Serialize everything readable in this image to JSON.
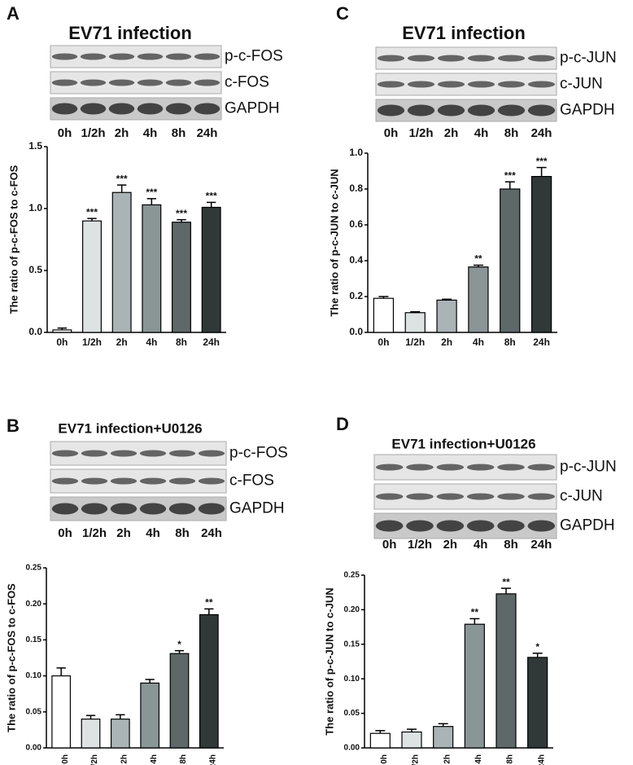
{
  "chart_data": [
    {
      "type": "bar",
      "panel": "A",
      "title": "EV71 infection",
      "blots": [
        "p-c-FOS",
        "c-FOS",
        "GAPDH"
      ],
      "ylabel": "The ratio of p-c-FOS to c-FOS",
      "categories": [
        "0h",
        "1/2h",
        "2h",
        "4h",
        "8h",
        "24h"
      ],
      "values": [
        0.02,
        0.9,
        1.13,
        1.03,
        0.89,
        1.01
      ],
      "errors": [
        0.015,
        0.02,
        0.06,
        0.05,
        0.02,
        0.04
      ],
      "annotations": [
        null,
        "***",
        "***",
        "***",
        "***",
        "***"
      ],
      "colors": [
        "#ffffff",
        "#dde3e3",
        "#aab3b5",
        "#8a9596",
        "#5e6868",
        "#303838"
      ],
      "ylim": [
        0,
        1.5
      ],
      "yticks": [
        {
          "value": 0,
          "label": "0.0"
        },
        0.5,
        {
          "value": 1,
          "label": "1.0"
        },
        1.5
      ]
    },
    {
      "type": "bar",
      "panel": "C",
      "title": "EV71 infection",
      "blots": [
        "p-c-JUN",
        "c-JUN",
        "GAPDH"
      ],
      "ylabel": "The ratio of p-c-JUN to c-JUN",
      "categories": [
        "0h",
        "1/2h",
        "2h",
        "4h",
        "8h",
        "24h"
      ],
      "values": [
        0.19,
        0.11,
        0.18,
        0.365,
        0.8,
        0.87
      ],
      "errors": [
        0.01,
        0.005,
        0.005,
        0.01,
        0.04,
        0.05
      ],
      "annotations": [
        null,
        null,
        null,
        "**",
        "***",
        "***"
      ],
      "colors": [
        "#ffffff",
        "#dde3e3",
        "#aab3b5",
        "#8a9596",
        "#5e6868",
        "#303838"
      ],
      "ylim": [
        0,
        1.0
      ],
      "yticks": [
        {
          "value": 0,
          "label": "0.0"
        },
        0.2,
        0.4,
        0.6,
        0.8,
        {
          "value": 1,
          "label": "1.0"
        }
      ]
    },
    {
      "type": "bar",
      "panel": "B",
      "title": "EV71 infection+U0126",
      "blots": [
        "p-c-FOS",
        "c-FOS",
        "GAPDH"
      ],
      "ylabel": "The ratio of p-c-FOS to c-FOS",
      "categories": [
        "0h",
        "1/2h",
        "2h",
        "4h",
        "8h",
        "24h"
      ],
      "values": [
        0.1,
        0.04,
        0.04,
        0.09,
        0.131,
        0.185
      ],
      "errors": [
        0.011,
        0.005,
        0.006,
        0.005,
        0.004,
        0.008
      ],
      "annotations": [
        null,
        null,
        null,
        null,
        "*",
        "**"
      ],
      "colors": [
        "#ffffff",
        "#dde3e3",
        "#aab3b5",
        "#8a9596",
        "#5e6868",
        "#303838"
      ],
      "ylim": [
        0,
        0.25
      ],
      "yticks": [
        {
          "value": 0,
          "label": "0.00"
        },
        {
          "value": 0.05,
          "label": "0.05"
        },
        {
          "value": 0.1,
          "label": "0.10"
        },
        {
          "value": 0.15,
          "label": "0.15"
        },
        {
          "value": 0.2,
          "label": "0.20"
        },
        {
          "value": 0.25,
          "label": "0.25"
        }
      ]
    },
    {
      "type": "bar",
      "panel": "D",
      "title": "EV71 infection+U0126",
      "blots": [
        "p-c-JUN",
        "c-JUN",
        "GAPDH"
      ],
      "ylabel": "The ratio of p-c-JUN to c-JUN",
      "categories": [
        "0h",
        "1/2h",
        "2h",
        "4h",
        "8h",
        "24h"
      ],
      "values": [
        0.021,
        0.023,
        0.031,
        0.179,
        0.223,
        0.131
      ],
      "errors": [
        0.004,
        0.004,
        0.004,
        0.008,
        0.008,
        0.006
      ],
      "annotations": [
        null,
        null,
        null,
        "**",
        "**",
        "*"
      ],
      "colors": [
        "#ffffff",
        "#dde3e3",
        "#aab3b5",
        "#8a9596",
        "#5e6868",
        "#303838"
      ],
      "ylim": [
        0,
        0.25
      ],
      "yticks": [
        {
          "value": 0,
          "label": "0.00"
        },
        {
          "value": 0.05,
          "label": "0.05"
        },
        {
          "value": 0.1,
          "label": "0.10"
        },
        {
          "value": 0.15,
          "label": "0.15"
        },
        {
          "value": 0.2,
          "label": "0.20"
        },
        {
          "value": 0.25,
          "label": "0.25"
        }
      ]
    }
  ]
}
